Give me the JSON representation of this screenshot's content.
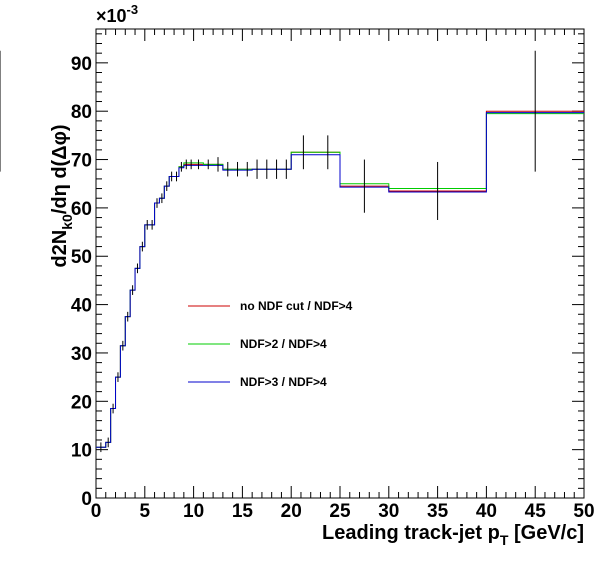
{
  "chart_data": {
    "type": "line",
    "style": "step histogram with error bars",
    "xlabel_main": "Leading track-jet p",
    "xlabel_sub": "T",
    "xlabel_unit": " [GeV/c]",
    "ylabel_parts": [
      "d2N",
      "k0",
      "/d",
      "η",
      " d(",
      "Δφ",
      ")"
    ],
    "y_exponent_base": "×10",
    "y_exponent_power": "-3",
    "xlim": [
      0,
      50
    ],
    "ylim": [
      0,
      97
    ],
    "xticks": [
      0,
      5,
      10,
      15,
      20,
      25,
      30,
      35,
      40,
      45,
      50
    ],
    "yticks": [
      0,
      10,
      20,
      30,
      40,
      50,
      60,
      70,
      80,
      90
    ],
    "grid": false,
    "legend_position": "center-left",
    "bin_edges": [
      0,
      1,
      1.5,
      2,
      2.5,
      3,
      3.5,
      4,
      4.5,
      5,
      5.5,
      6,
      6.5,
      7,
      7.5,
      8,
      8.5,
      9,
      9.5,
      10,
      11,
      12,
      13,
      14,
      15,
      16,
      17,
      18,
      19,
      20,
      22.5,
      25,
      30,
      40,
      50
    ],
    "series": [
      {
        "name": "no NDF cut / NDF>4",
        "color": "#cc0000",
        "values": [
          10.5,
          11.5,
          18.5,
          25,
          31.5,
          37.5,
          43,
          47.5,
          52,
          56.5,
          56.5,
          61,
          62,
          64.5,
          66.5,
          66.5,
          68.5,
          69,
          69,
          69,
          69,
          69,
          68,
          68,
          68,
          68,
          68,
          68,
          68,
          71.5,
          71.5,
          64.5,
          63.5,
          80,
          80
        ],
        "errors": [
          1,
          1,
          1,
          1,
          1,
          1,
          1,
          1,
          1,
          1,
          1,
          1,
          1,
          1,
          1,
          1,
          1,
          1,
          1,
          1,
          1,
          1.5,
          1.5,
          1.5,
          1.5,
          2,
          2,
          2,
          2,
          3.5,
          3.5,
          5.5,
          6,
          12.5,
          12.5
        ]
      },
      {
        "name": "NDF>2 / NDF>4",
        "color": "#00cc00",
        "values": [
          10.5,
          11.5,
          18.5,
          25,
          31.5,
          37.5,
          43,
          47.5,
          52,
          56.5,
          56.5,
          61,
          62,
          64.5,
          66.5,
          66.5,
          68.5,
          69.3,
          69.3,
          69.3,
          69,
          69,
          68,
          68,
          68,
          68,
          68,
          68,
          68,
          71.5,
          71.5,
          65,
          64,
          79.5,
          79.5
        ]
      },
      {
        "name": "NDF>3 / NDF>4",
        "color": "#0000cc",
        "values": [
          10.5,
          11.5,
          18.5,
          25,
          31.5,
          37.5,
          43,
          47.5,
          52,
          56.5,
          56.5,
          61,
          62,
          64.5,
          66.5,
          66.5,
          68.3,
          68.8,
          68.8,
          68.8,
          68.8,
          68.8,
          67.8,
          67.8,
          67.8,
          68,
          68,
          68,
          68,
          71,
          71,
          64.3,
          63.3,
          79.7,
          79.7
        ]
      }
    ]
  }
}
